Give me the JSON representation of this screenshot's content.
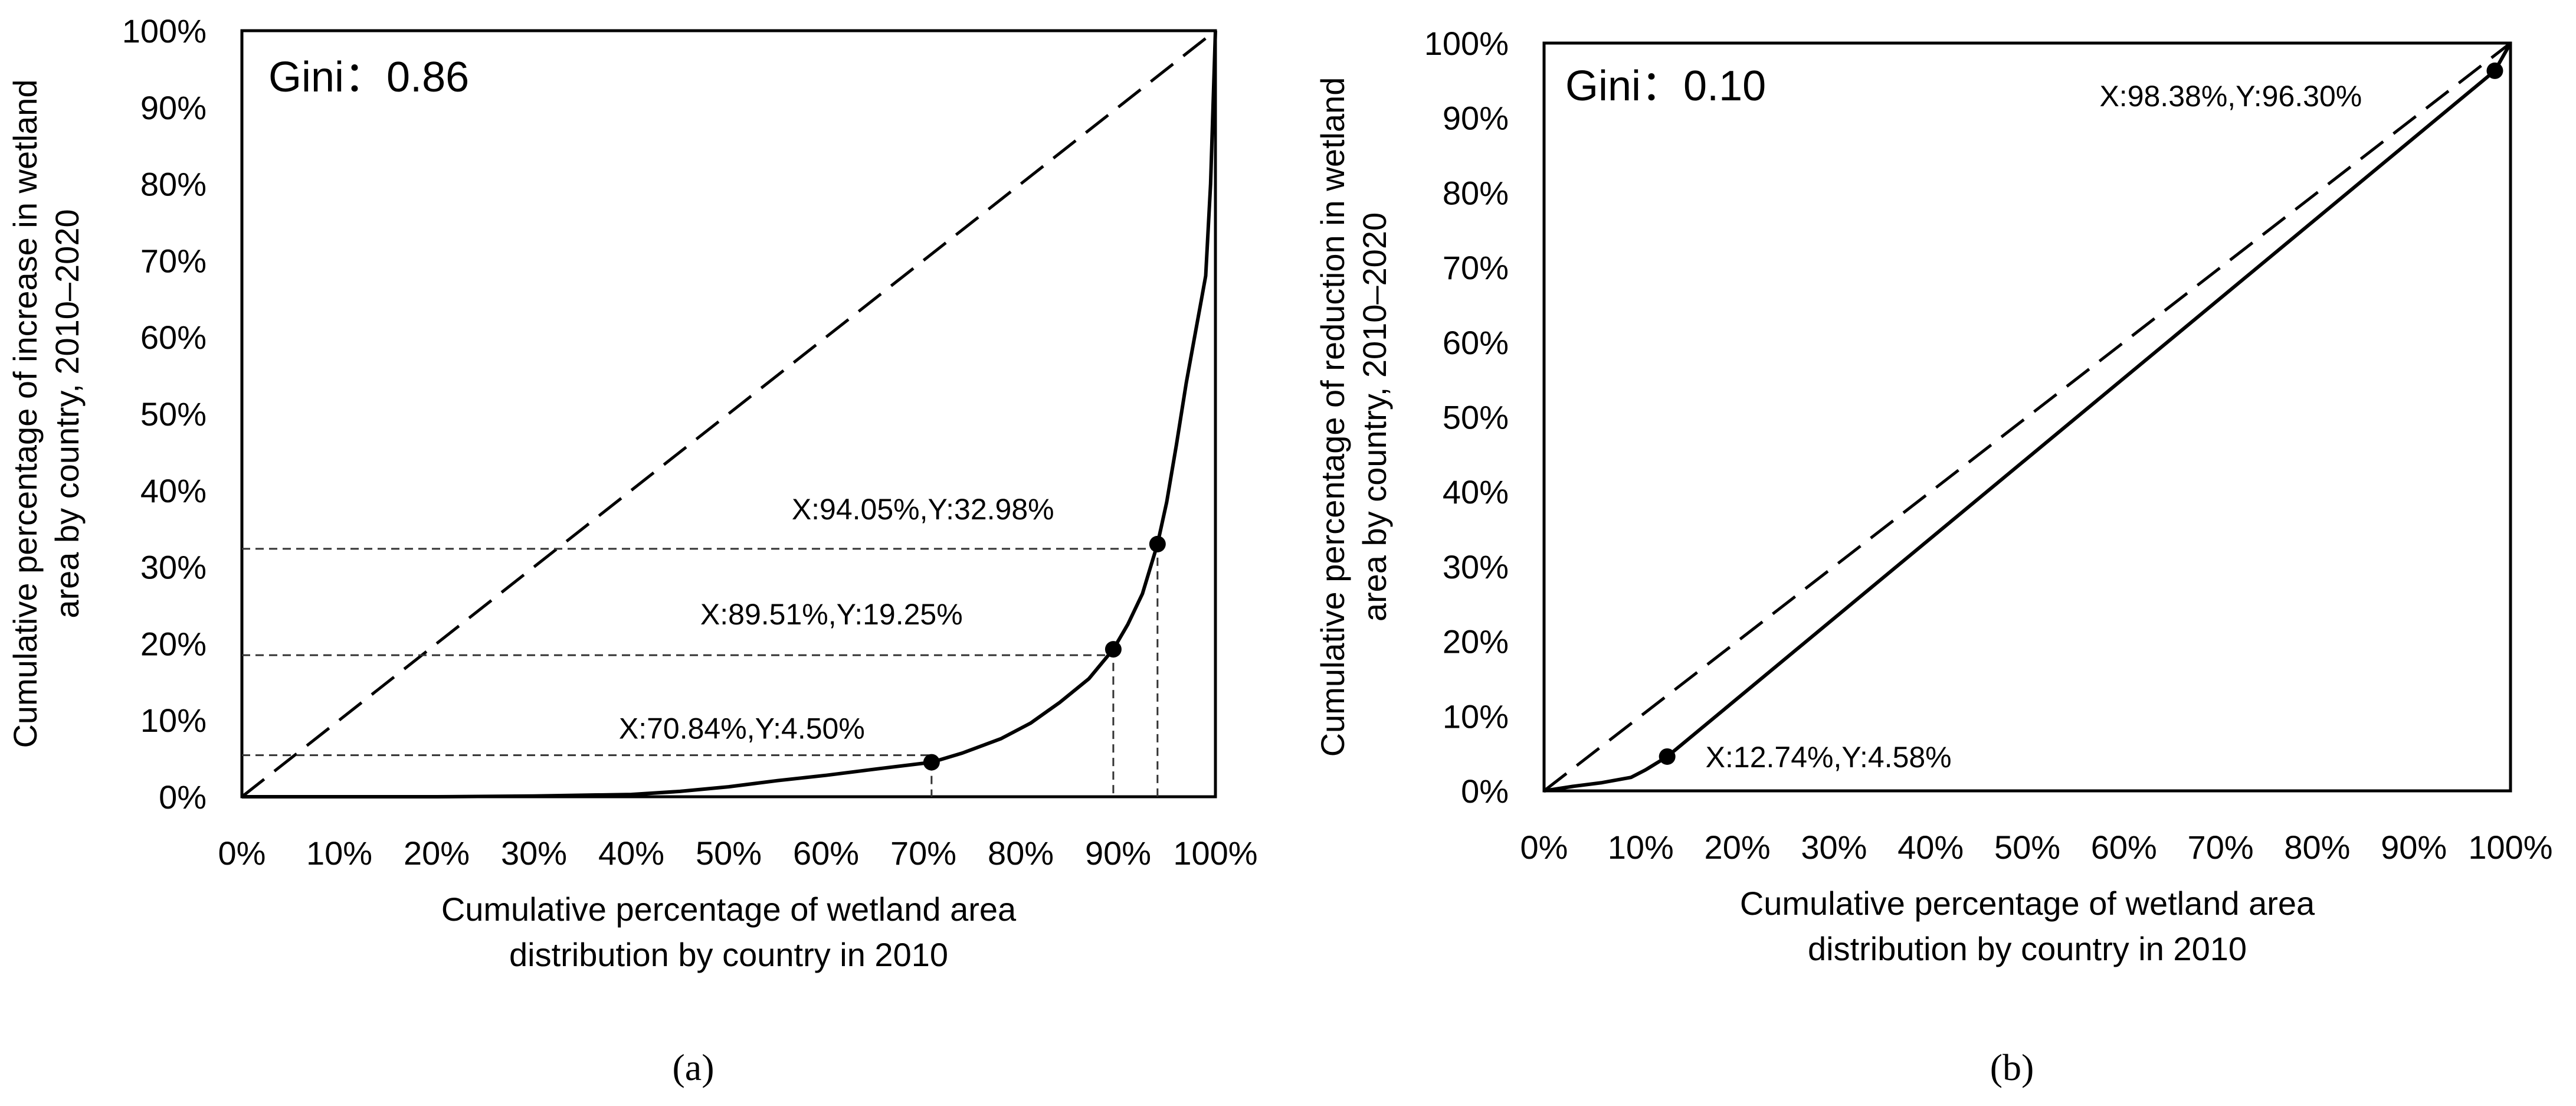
{
  "chart_data": [
    {
      "type": "line",
      "panel_label": "a",
      "title": "",
      "gini_label": "Gini：",
      "gini_value": "0.86",
      "xlabel": [
        "Cumulative percentage of wetland area",
        "distribution by country in 2010"
      ],
      "ylabel": [
        "Cumulative percentage of increase in wetland",
        "area by country, 2010–2020"
      ],
      "xlim": [
        0,
        100
      ],
      "ylim": [
        0,
        100
      ],
      "x_ticks": [
        "0%",
        "10%",
        "20%",
        "30%",
        "40%",
        "50%",
        "60%",
        "70%",
        "80%",
        "90%",
        "100%"
      ],
      "y_ticks": [
        "0%",
        "10%",
        "20%",
        "30%",
        "40%",
        "50%",
        "60%",
        "70%",
        "80%",
        "90%",
        "100%"
      ],
      "equality_line": {
        "name": "Line of equality",
        "style": "dashed",
        "x": [
          0,
          100
        ],
        "y": [
          0,
          100
        ]
      },
      "series": [
        {
          "name": "Lorenz curve",
          "x": [
            0,
            20,
            30,
            35,
            40,
            45,
            50,
            55,
            60,
            65,
            70.84,
            74,
            78,
            81,
            84,
            87,
            89.51,
            91,
            92.5,
            94.05,
            95,
            96,
            97,
            98,
            98.5,
            99,
            99.5,
            100
          ],
          "y": [
            0,
            0,
            0.1,
            0.2,
            0.3,
            0.7,
            1.3,
            2.1,
            2.8,
            3.6,
            4.5,
            5.7,
            7.6,
            9.6,
            12.3,
            15.4,
            19.25,
            22.5,
            26.5,
            32.98,
            38.5,
            46,
            54,
            61,
            64.5,
            68,
            80,
            100
          ]
        }
      ],
      "points": [
        {
          "x": 70.84,
          "y": 4.5,
          "label": "X:70.84%,Y:4.50%"
        },
        {
          "x": 89.51,
          "y": 19.25,
          "label": "X:89.51%,Y:19.25%"
        },
        {
          "x": 94.05,
          "y": 32.98,
          "label": "X:94.05%,Y:32.98%"
        }
      ],
      "caption": "(a)"
    },
    {
      "type": "line",
      "panel_label": "b",
      "title": "",
      "gini_label": "Gini：",
      "gini_value": "0.10",
      "xlabel": [
        "Cumulative percentage of wetland area",
        "distribution by country in 2010"
      ],
      "ylabel": [
        "Cumulative percentage of reduction in wetland",
        "area by country, 2010–2020"
      ],
      "xlim": [
        0,
        100
      ],
      "ylim": [
        0,
        100
      ],
      "x_ticks": [
        "0%",
        "10%",
        "20%",
        "30%",
        "40%",
        "50%",
        "60%",
        "70%",
        "80%",
        "90%",
        "100%"
      ],
      "y_ticks": [
        "0%",
        "10%",
        "20%",
        "30%",
        "40%",
        "50%",
        "60%",
        "70%",
        "80%",
        "90%",
        "100%"
      ],
      "equality_line": {
        "name": "Line of equality",
        "style": "dashed",
        "x": [
          0,
          100
        ],
        "y": [
          0,
          100
        ]
      },
      "series": [
        {
          "name": "Lorenz curve",
          "x": [
            0,
            3,
            6,
            9,
            10.5,
            12.74,
            98.38,
            100
          ],
          "y": [
            0,
            0.6,
            1.1,
            1.8,
            2.8,
            4.58,
            96.3,
            100
          ]
        }
      ],
      "points": [
        {
          "x": 12.74,
          "y": 4.58,
          "label": "X:12.74%,Y:4.58%"
        },
        {
          "x": 98.38,
          "y": 96.3,
          "label": "X:98.38%,Y:96.30%"
        }
      ],
      "caption": "(b)"
    }
  ]
}
